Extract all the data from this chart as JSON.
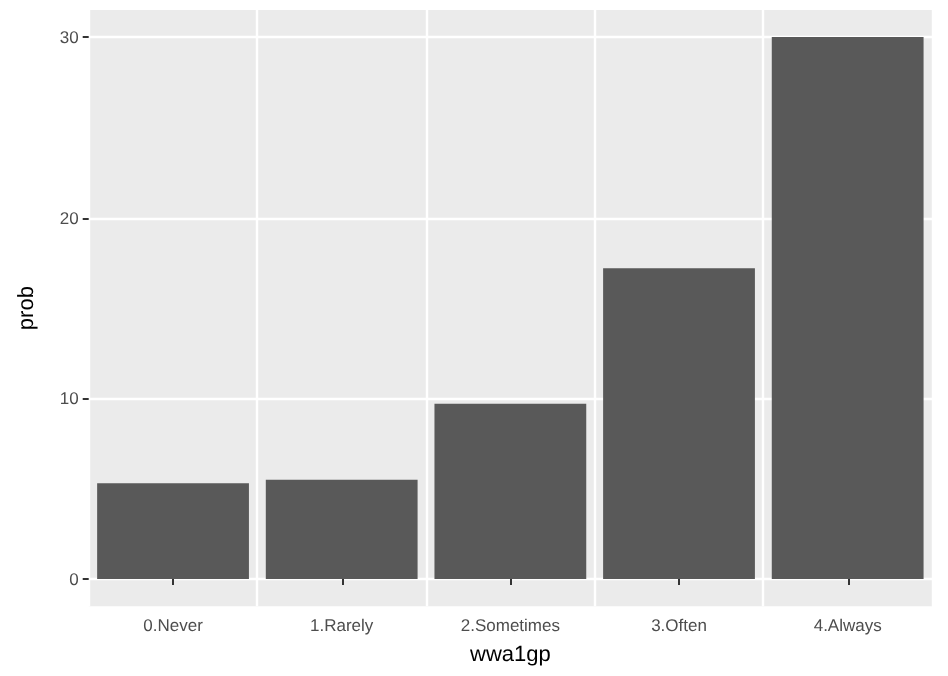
{
  "chart_data": {
    "type": "bar",
    "xlabel": "wwa1gp",
    "ylabel": "prob",
    "categories": [
      "0.Never",
      "1.Rarely",
      "2.Sometimes",
      "3.Often",
      "4.Always"
    ],
    "values": [
      5.3,
      5.5,
      9.7,
      17.2,
      30.0
    ],
    "color": "#595959",
    "ylim": [
      -1.5,
      31.5
    ],
    "yticks": [
      0,
      10,
      20,
      30
    ],
    "grid": true
  }
}
